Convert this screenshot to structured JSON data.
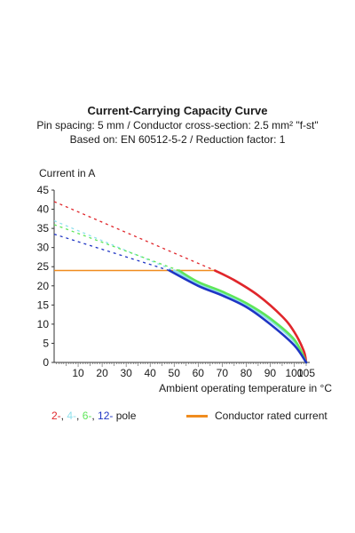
{
  "chart_data": {
    "type": "line",
    "title": "Current-Carrying Capacity Curve",
    "subtitle_lines": [
      "Pin spacing: 5 mm / Conductor cross-section: 2.5 mm² \"f-st\"",
      "Based on: EN 60512-5-2 / Reduction factor: 1"
    ],
    "ylabel": "Current in A",
    "xlabel": "Ambient operating temperature in °C",
    "xlim": [
      0,
      105
    ],
    "ylim": [
      0,
      45
    ],
    "xticks": [
      "10",
      "20",
      "30",
      "40",
      "50",
      "60",
      "70",
      "80",
      "90",
      "100",
      "105"
    ],
    "yticks": [
      "0",
      "5",
      "10",
      "15",
      "20",
      "25",
      "30",
      "35",
      "40",
      "45"
    ],
    "xtick_values": [
      10,
      20,
      30,
      40,
      50,
      60,
      70,
      80,
      90,
      100,
      105
    ],
    "ytick_values": [
      0,
      5,
      10,
      15,
      20,
      25,
      30,
      35,
      40,
      45
    ],
    "grid": false,
    "rated_current": {
      "name": "Conductor rated current",
      "value": 24,
      "color": "#f08c1e"
    },
    "series": [
      {
        "pole": "2-",
        "color": "#e0262b",
        "dashed": {
          "x": [
            0,
            67
          ],
          "y": [
            42,
            24
          ]
        },
        "solid": {
          "x": [
            67,
            75,
            85,
            95,
            100,
            104,
            105
          ],
          "y": [
            24,
            21.5,
            17.5,
            12,
            8,
            3,
            0
          ]
        }
      },
      {
        "pole": "4-",
        "color": "#8ee0ec",
        "dashed": {
          "x": [
            0,
            50
          ],
          "y": [
            37,
            24
          ]
        },
        "solid": {
          "x": [
            50,
            60,
            70,
            80,
            90,
            100,
            105
          ],
          "y": [
            24,
            20.5,
            18,
            15,
            11,
            5.5,
            0
          ]
        }
      },
      {
        "pole": "6-",
        "color": "#5fe65a",
        "dashed": {
          "x": [
            0,
            52
          ],
          "y": [
            36,
            24
          ]
        },
        "solid": {
          "x": [
            52,
            60,
            70,
            80,
            90,
            100,
            105
          ],
          "y": [
            24,
            21,
            18.5,
            15.5,
            11.5,
            6,
            0
          ]
        }
      },
      {
        "pole": "12-",
        "color": "#1f35c4",
        "dashed": {
          "x": [
            0,
            48
          ],
          "y": [
            33.5,
            24
          ]
        },
        "solid": {
          "x": [
            48,
            60,
            70,
            80,
            90,
            100,
            105
          ],
          "y": [
            24,
            20,
            17.5,
            14.5,
            10,
            4.5,
            0
          ]
        }
      }
    ],
    "legend": {
      "items": [
        {
          "text": "2-",
          "color": "#e0262b"
        },
        {
          "text": "4-",
          "color": "#8ee0ec"
        },
        {
          "text": "6-",
          "color": "#5fe65a"
        },
        {
          "text": "12-",
          "color": "#1f35c4"
        }
      ],
      "separator": ", ",
      "suffix": " pole",
      "rated_label": "Conductor rated current"
    }
  }
}
